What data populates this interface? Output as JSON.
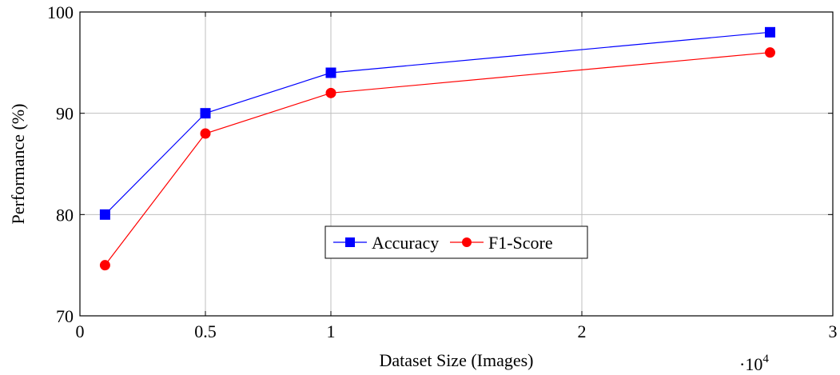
{
  "chart_data": {
    "type": "line",
    "title": "",
    "xlabel": "Dataset Size (Images)",
    "ylabel": "Performance (%)",
    "x_multiplier_label": "·10",
    "x_multiplier_exp": "4",
    "xlim": [
      0,
      3
    ],
    "ylim": [
      70,
      100
    ],
    "x_ticks": [
      0,
      0.5,
      1,
      2,
      3
    ],
    "x_tick_labels": [
      "0",
      "0.5",
      "1",
      "2",
      "3"
    ],
    "y_ticks": [
      70,
      80,
      90,
      100
    ],
    "y_tick_labels": [
      "70",
      "80",
      "90",
      "100"
    ],
    "grid": true,
    "legend_position": "center",
    "x": [
      0.1,
      0.5,
      1,
      2.75
    ],
    "series": [
      {
        "name": "Accuracy",
        "values": [
          80,
          90,
          94,
          98
        ],
        "color": "#0000ff",
        "marker": "square"
      },
      {
        "name": "F1-Score",
        "values": [
          75,
          88,
          92,
          96
        ],
        "color": "#ff0000",
        "marker": "circle"
      }
    ]
  }
}
